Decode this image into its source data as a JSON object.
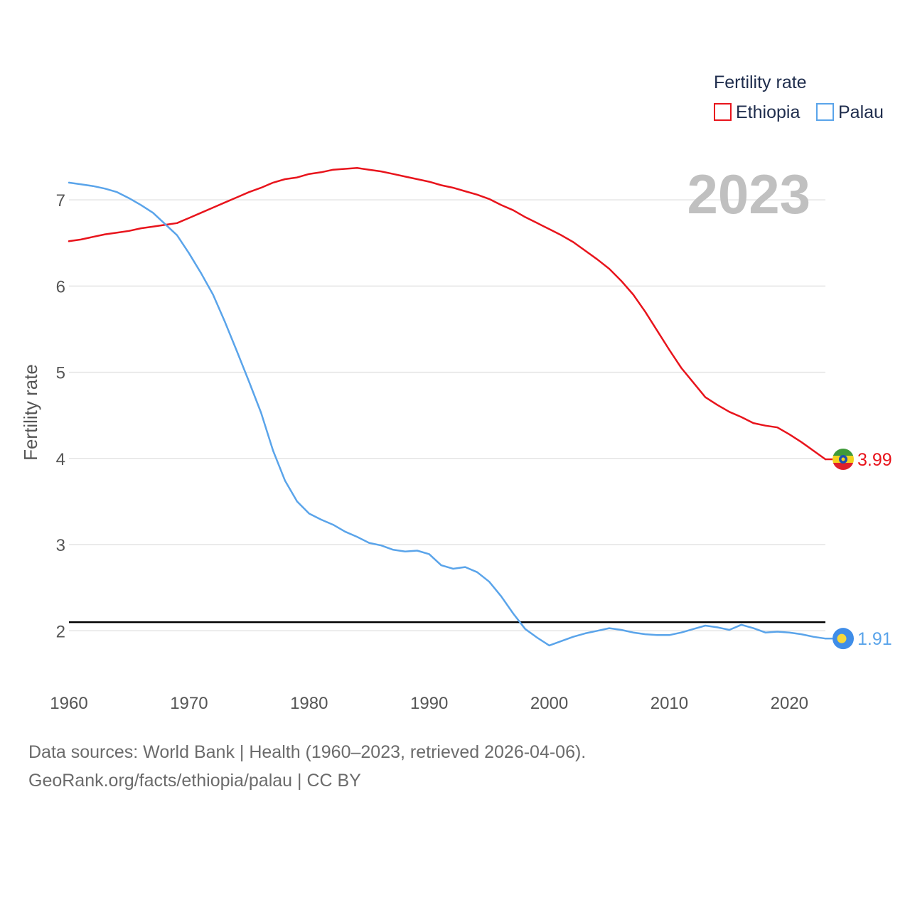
{
  "chart_data": {
    "type": "line",
    "year_label": "2023",
    "ylabel": "Fertility rate",
    "legend_title": "Fertility rate",
    "x_ticks": [
      1960,
      1970,
      1980,
      1990,
      2000,
      2010,
      2020
    ],
    "y_ticks": [
      2,
      3,
      4,
      5,
      6,
      7
    ],
    "xlim": [
      1960,
      2023
    ],
    "ylim": [
      1.4,
      7.9
    ],
    "reference_line": {
      "value": 2.1,
      "color": "#000000"
    },
    "series": [
      {
        "name": "Ethiopia",
        "color": "#e8141c",
        "end_label": "3.99",
        "flag": "ethiopia-flag",
        "x": [
          1960,
          1961,
          1962,
          1963,
          1964,
          1965,
          1966,
          1967,
          1968,
          1969,
          1970,
          1971,
          1972,
          1973,
          1974,
          1975,
          1976,
          1977,
          1978,
          1979,
          1980,
          1981,
          1982,
          1983,
          1984,
          1985,
          1986,
          1987,
          1988,
          1989,
          1990,
          1991,
          1992,
          1993,
          1994,
          1995,
          1996,
          1997,
          1998,
          1999,
          2000,
          2001,
          2002,
          2003,
          2004,
          2005,
          2006,
          2007,
          2008,
          2009,
          2010,
          2011,
          2012,
          2013,
          2014,
          2015,
          2016,
          2017,
          2018,
          2019,
          2020,
          2021,
          2022,
          2023
        ],
        "values": [
          6.52,
          6.54,
          6.57,
          6.6,
          6.62,
          6.64,
          6.67,
          6.69,
          6.71,
          6.73,
          6.79,
          6.85,
          6.91,
          6.97,
          7.03,
          7.09,
          7.14,
          7.2,
          7.24,
          7.26,
          7.3,
          7.32,
          7.35,
          7.36,
          7.37,
          7.35,
          7.33,
          7.3,
          7.27,
          7.24,
          7.21,
          7.17,
          7.14,
          7.1,
          7.06,
          7.01,
          6.94,
          6.88,
          6.8,
          6.73,
          6.66,
          6.59,
          6.51,
          6.41,
          6.31,
          6.2,
          6.06,
          5.9,
          5.7,
          5.48,
          5.26,
          5.05,
          4.88,
          4.71,
          4.62,
          4.54,
          4.48,
          4.41,
          4.38,
          4.36,
          4.28,
          4.19,
          4.09,
          3.99
        ]
      },
      {
        "name": "Palau",
        "color": "#5aa4ea",
        "end_label": "1.91",
        "flag": "palau-flag",
        "x": [
          1960,
          1961,
          1962,
          1963,
          1964,
          1965,
          1966,
          1967,
          1968,
          1969,
          1970,
          1971,
          1972,
          1973,
          1974,
          1975,
          1976,
          1977,
          1978,
          1979,
          1980,
          1981,
          1982,
          1983,
          1984,
          1985,
          1986,
          1987,
          1988,
          1989,
          1990,
          1991,
          1992,
          1993,
          1994,
          1995,
          1996,
          1997,
          1998,
          1999,
          2000,
          2001,
          2002,
          2003,
          2004,
          2005,
          2006,
          2007,
          2008,
          2009,
          2010,
          2011,
          2012,
          2013,
          2014,
          2015,
          2016,
          2017,
          2018,
          2019,
          2020,
          2021,
          2022,
          2023
        ],
        "values": [
          7.2,
          7.18,
          7.16,
          7.13,
          7.09,
          7.02,
          6.94,
          6.85,
          6.72,
          6.59,
          6.38,
          6.15,
          5.9,
          5.58,
          5.24,
          4.89,
          4.53,
          4.09,
          3.74,
          3.5,
          3.36,
          3.29,
          3.23,
          3.15,
          3.09,
          3.02,
          2.99,
          2.94,
          2.92,
          2.93,
          2.89,
          2.76,
          2.72,
          2.74,
          2.68,
          2.57,
          2.4,
          2.2,
          2.02,
          1.92,
          1.83,
          1.88,
          1.93,
          1.97,
          2.0,
          2.03,
          2.01,
          1.98,
          1.96,
          1.95,
          1.95,
          1.98,
          2.02,
          2.06,
          2.04,
          2.01,
          2.07,
          2.03,
          1.98,
          1.99,
          1.98,
          1.96,
          1.93,
          1.91
        ]
      }
    ]
  },
  "footer": {
    "sources": "Data sources: World Bank | Health (1960–2023, retrieved 2026-04-06).",
    "attribution": "GeoRank.org/facts/ethiopia/palau | CC BY"
  }
}
